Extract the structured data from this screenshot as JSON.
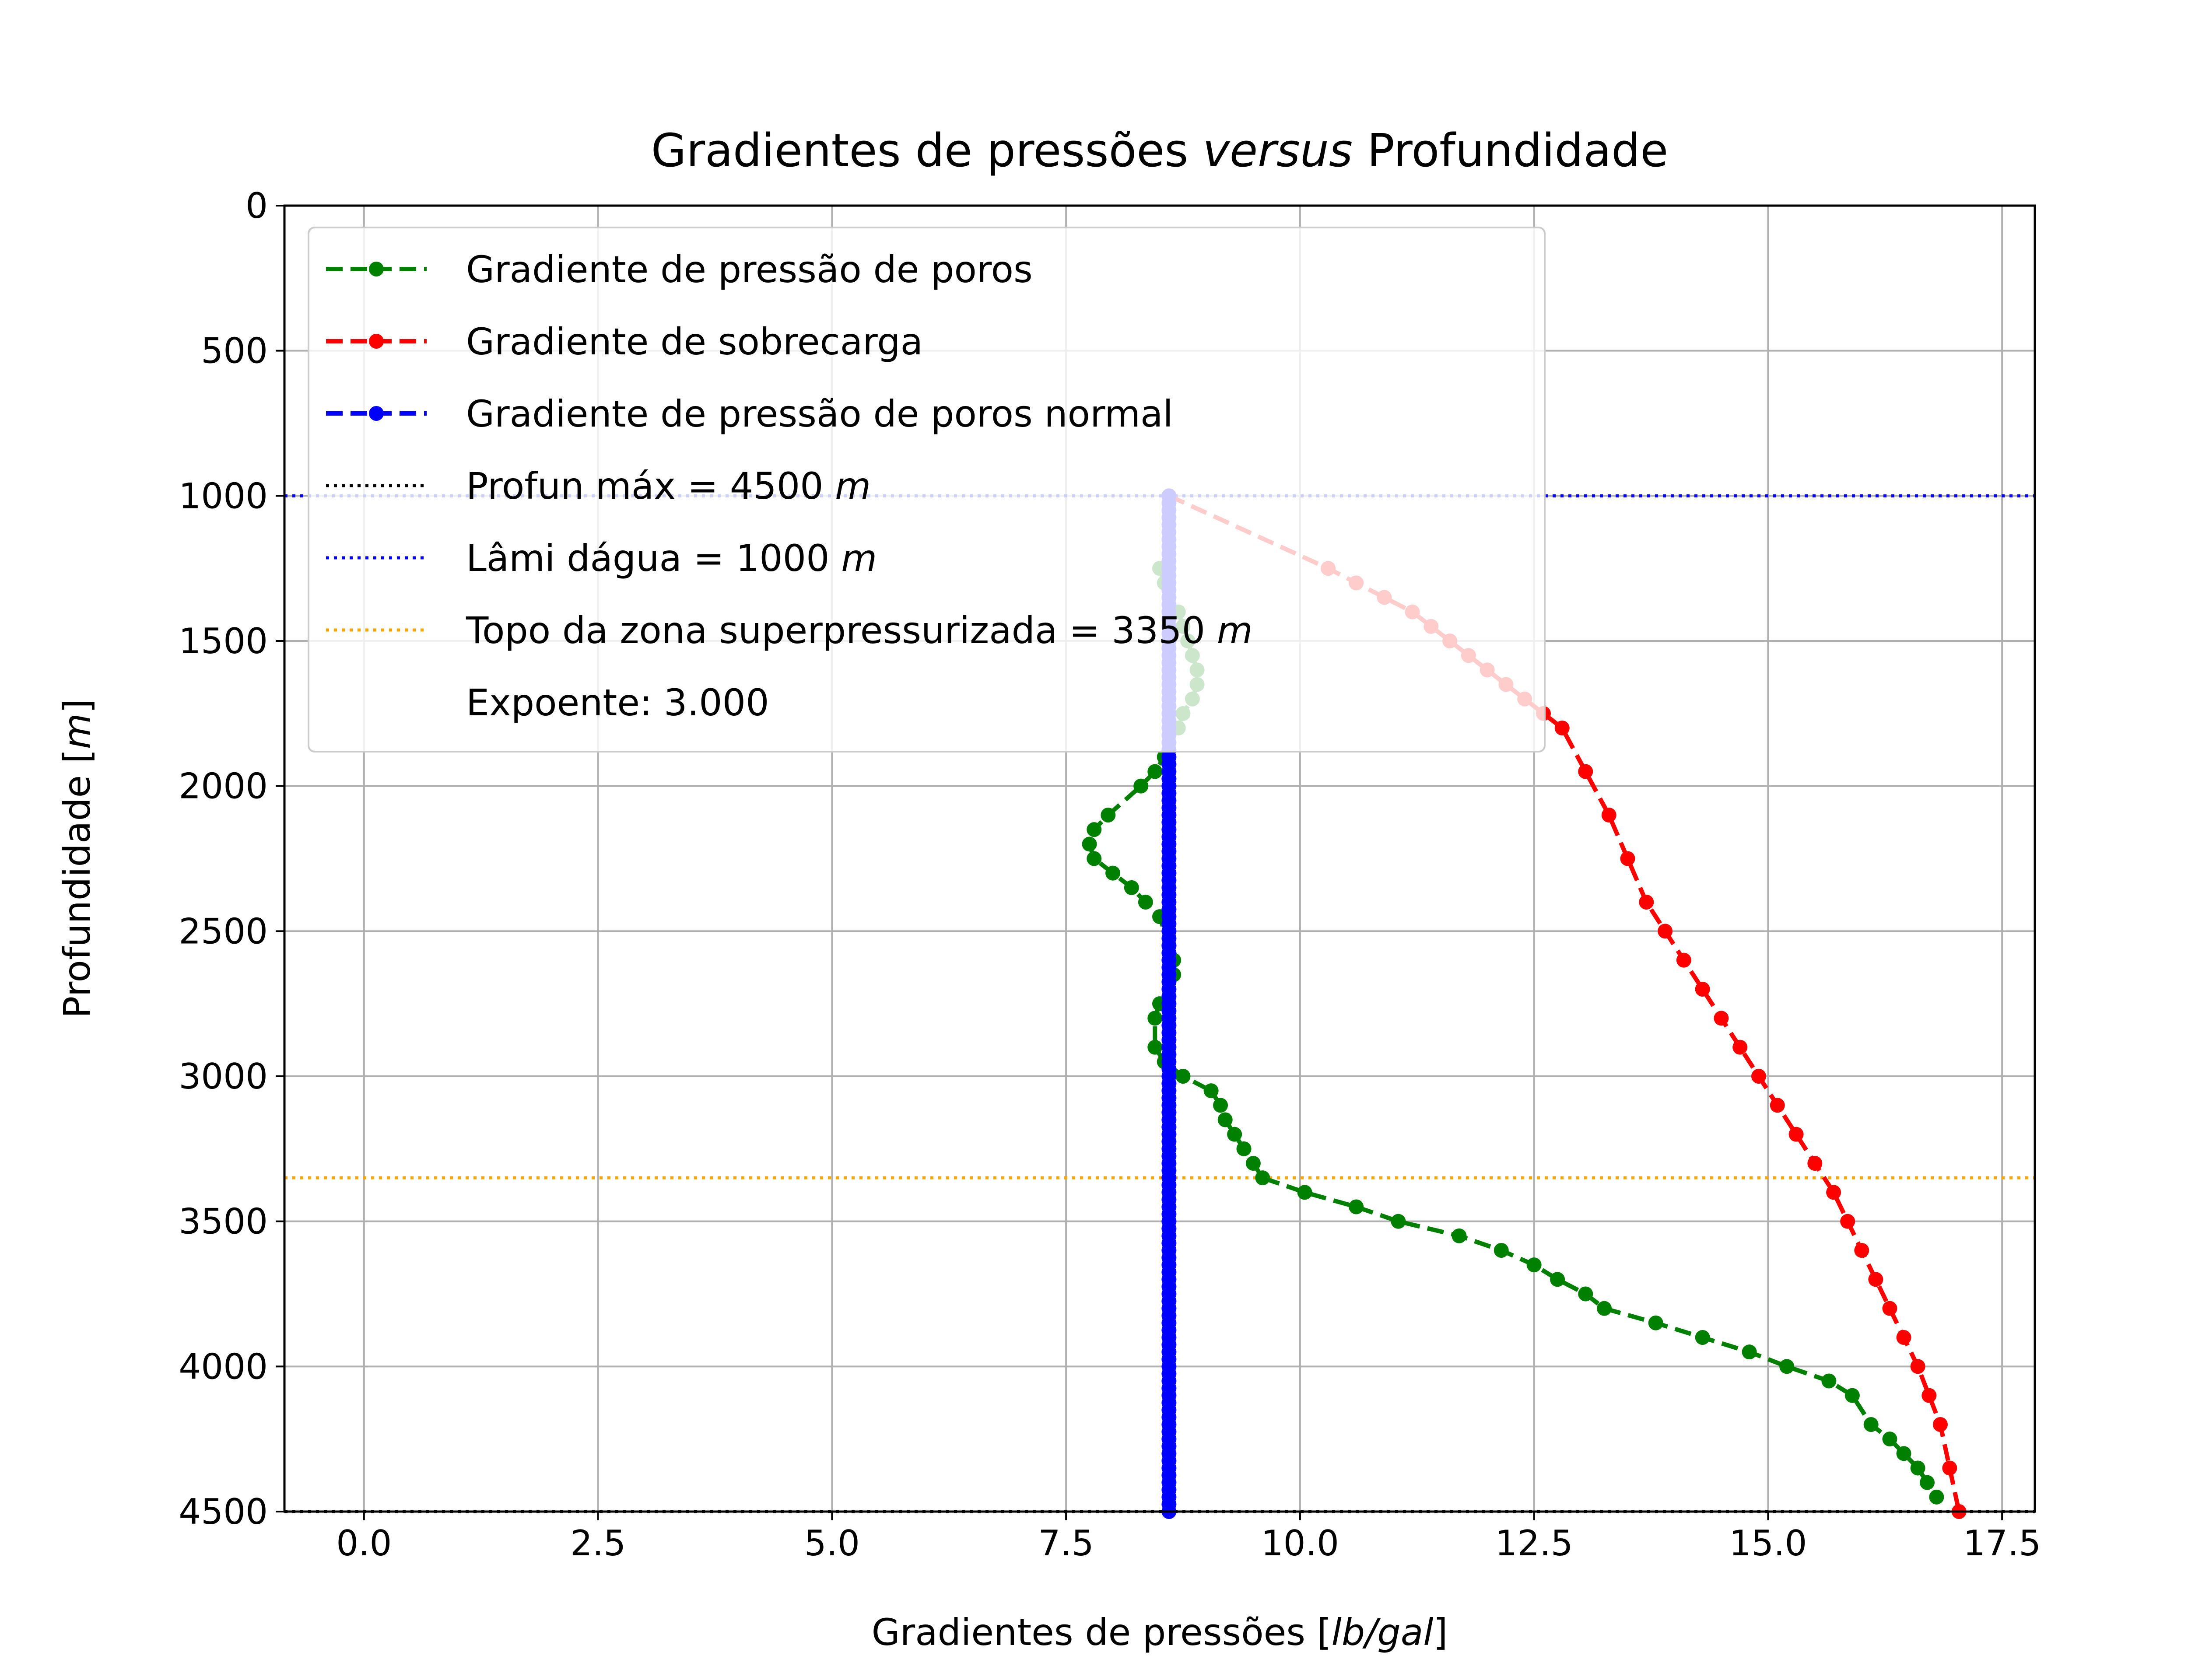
{
  "chart_data": {
    "type": "line",
    "title": {
      "before": "Gradientes de pressões ",
      "italic": "versus",
      "after": " Profundidade"
    },
    "xlabel": {
      "before": "Gradientes de pressões [",
      "italic": "lb/gal",
      "after": "]"
    },
    "ylabel": {
      "before": "Profundidade [",
      "italic": "m",
      "after": "]"
    },
    "xlim": [
      -0.85,
      17.85
    ],
    "ylim": [
      4500,
      0
    ],
    "y_inverted": true,
    "grid": true,
    "legend_position": "upper-left",
    "x_ticks": [
      "0.0",
      "2.5",
      "5.0",
      "7.5",
      "10.0",
      "12.5",
      "15.0",
      "17.5"
    ],
    "x_tick_values": [
      0,
      2.5,
      5,
      7.5,
      10,
      12.5,
      15,
      17.5
    ],
    "y_ticks": [
      "0",
      "500",
      "1000",
      "1500",
      "2000",
      "2500",
      "3000",
      "3500",
      "4000",
      "4500"
    ],
    "y_tick_values": [
      0,
      500,
      1000,
      1500,
      2000,
      2500,
      3000,
      3500,
      4000,
      4500
    ],
    "legend": [
      {
        "text": "Gradiente de pressão de poros",
        "style": "dashed-marker",
        "color": "#008000"
      },
      {
        "text": "Gradiente de sobrecarga",
        "style": "dashed-marker",
        "color": "#ff0000"
      },
      {
        "text": "Gradiente de pressão de poros normal",
        "style": "dashed-marker",
        "color": "#0000ff"
      },
      {
        "text": "Profun máx = 4500 ",
        "italic": "m",
        "style": "dotted",
        "color": "#000000"
      },
      {
        "text": "Lâmi dágua = 1000 ",
        "italic": "m",
        "style": "dotted",
        "color": "#0000ff"
      },
      {
        "text": "Topo da zona superpressurizada = 3350 ",
        "italic": "m",
        "style": "dotted",
        "color": "#ffa500"
      },
      {
        "text": "Expoente: 3.000",
        "style": "none",
        "color": "#000000"
      }
    ],
    "series": [
      {
        "name": "Gradiente de pressão de poros",
        "color": "#008000",
        "line": "dashed",
        "x": [
          8.5,
          8.55,
          8.6,
          8.7,
          8.75,
          8.8,
          8.85,
          8.9,
          8.9,
          8.85,
          8.75,
          8.7,
          8.6,
          8.55,
          8.45,
          8.3,
          7.95,
          7.8,
          7.75,
          7.8,
          8.0,
          8.2,
          8.35,
          8.5,
          8.6,
          8.65,
          8.65,
          8.5,
          8.45,
          8.45,
          8.55,
          8.75,
          9.05,
          9.15,
          9.2,
          9.3,
          9.4,
          9.5,
          9.6,
          10.05,
          10.6,
          11.05,
          11.7,
          12.15,
          12.5,
          12.75,
          13.05,
          13.25,
          13.8,
          14.3,
          14.8,
          15.2,
          15.65,
          15.9,
          16.1,
          16.3,
          16.45,
          16.6,
          16.7,
          16.8
        ],
        "y": [
          1250,
          1300,
          1350,
          1400,
          1450,
          1500,
          1550,
          1600,
          1650,
          1700,
          1750,
          1800,
          1850,
          1900,
          1950,
          2000,
          2100,
          2150,
          2200,
          2250,
          2300,
          2350,
          2400,
          2450,
          2550,
          2600,
          2650,
          2750,
          2800,
          2900,
          2950,
          3000,
          3050,
          3100,
          3150,
          3200,
          3250,
          3300,
          3350,
          3400,
          3450,
          3500,
          3550,
          3600,
          3650,
          3700,
          3750,
          3800,
          3850,
          3900,
          3950,
          4000,
          4050,
          4100,
          4200,
          4250,
          4300,
          4350,
          4400,
          4450
        ]
      },
      {
        "name": "Gradiente de sobrecarga",
        "color": "#ff0000",
        "line": "dashed",
        "x": [
          8.6,
          10.3,
          10.6,
          10.9,
          11.2,
          11.4,
          11.6,
          11.8,
          12.0,
          12.2,
          12.4,
          12.6,
          12.8,
          13.05,
          13.3,
          13.5,
          13.7,
          13.9,
          14.1,
          14.3,
          14.5,
          14.7,
          14.9,
          15.1,
          15.3,
          15.5,
          15.7,
          15.85,
          16.0,
          16.15,
          16.3,
          16.45,
          16.6,
          16.72,
          16.84,
          16.94,
          17.04
        ],
        "y": [
          1000,
          1250,
          1300,
          1350,
          1400,
          1450,
          1500,
          1550,
          1600,
          1650,
          1700,
          1750,
          1800,
          1950,
          2100,
          2250,
          2400,
          2500,
          2600,
          2700,
          2800,
          2900,
          3000,
          3100,
          3200,
          3300,
          3400,
          3500,
          3600,
          3700,
          3800,
          3900,
          4000,
          4100,
          4200,
          4350,
          4500
        ]
      },
      {
        "name": "Gradiente de pressão de poros normal",
        "color": "#0000ff",
        "line": "dashed",
        "x_constant": 8.6,
        "y_start": 1000,
        "y_end": 4500,
        "y_step": 25
      }
    ],
    "hlines": [
      {
        "name": "Profun máx",
        "y": 4500,
        "color": "#000000"
      },
      {
        "name": "Lâmi dágua",
        "y": 1000,
        "color": "#0000ff"
      },
      {
        "name": "Topo da zona superpressurizada",
        "y": 3350,
        "color": "#ffa500"
      }
    ]
  }
}
